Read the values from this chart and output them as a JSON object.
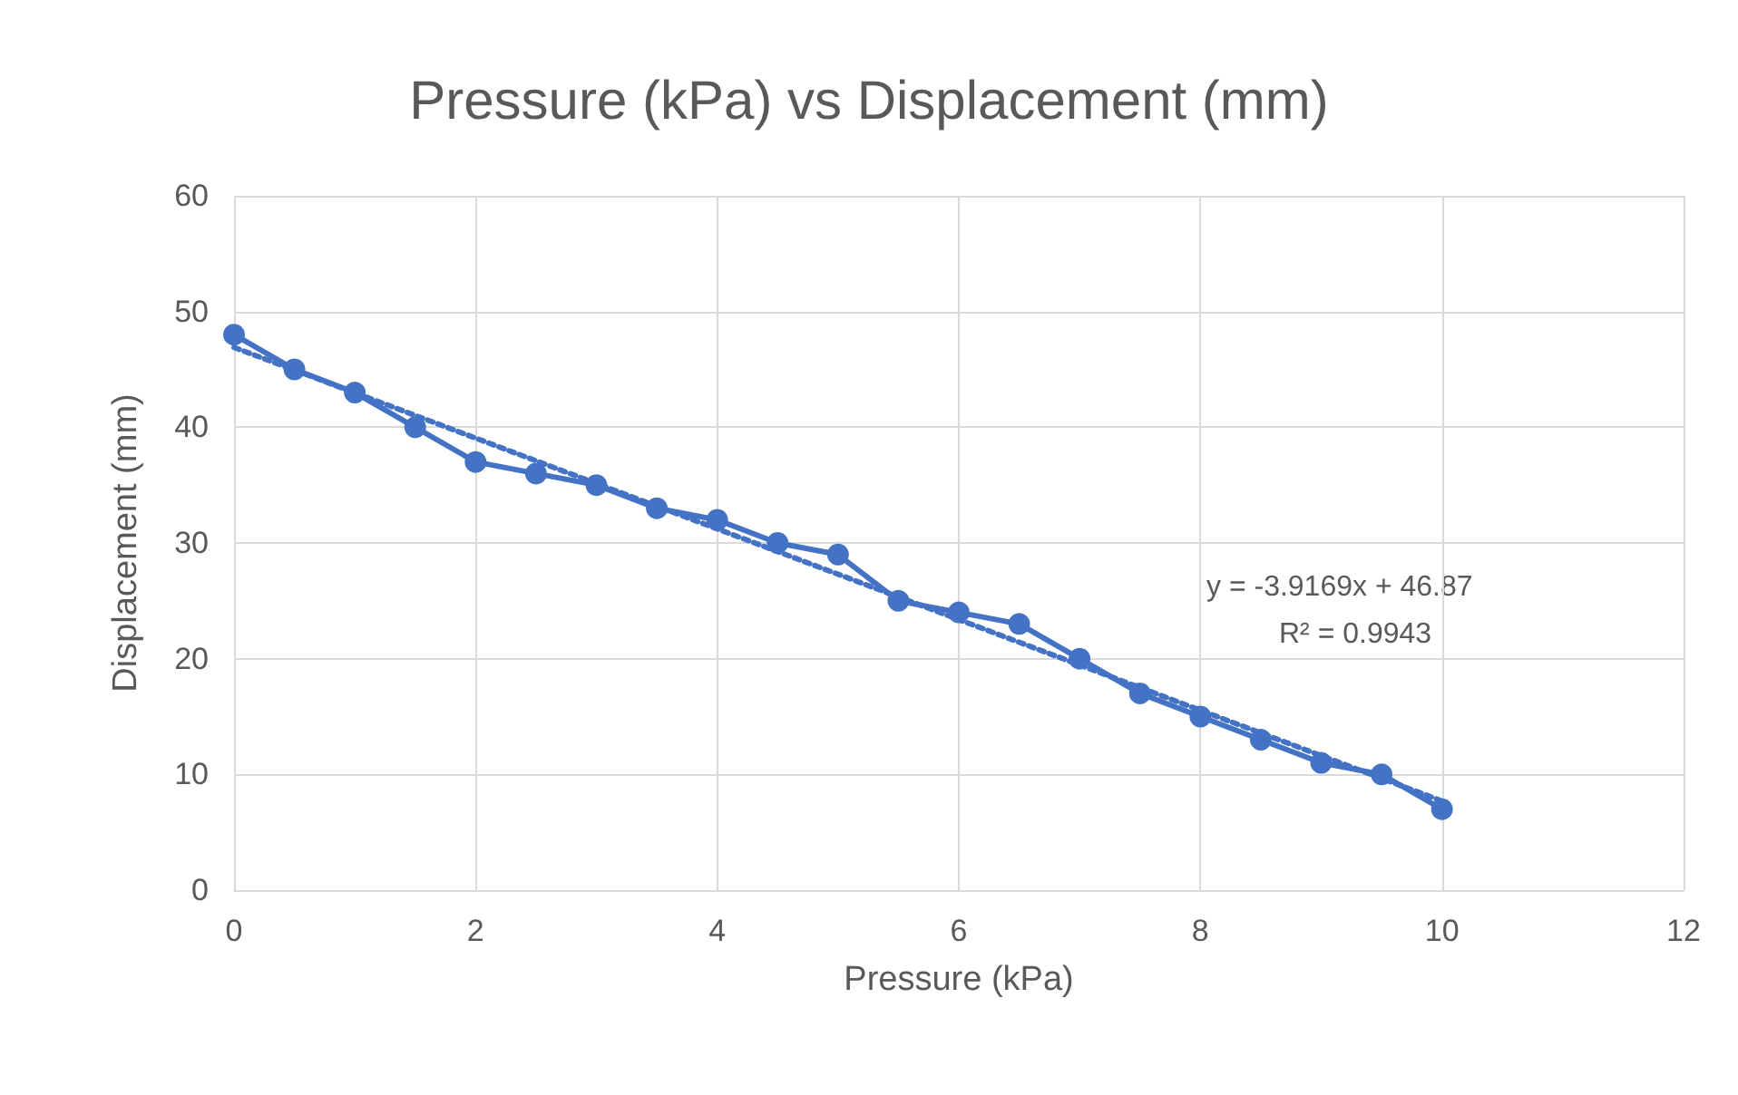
{
  "chart_data": {
    "type": "line",
    "title": "Pressure (kPa) vs Displacement (mm)",
    "xlabel": "Pressure (kPa)",
    "ylabel": "Displacement (mm)",
    "x": [
      0,
      0.5,
      1,
      1.5,
      2,
      2.5,
      3,
      3.5,
      4,
      4.5,
      5,
      5.5,
      6,
      6.5,
      7,
      7.5,
      8,
      8.5,
      9,
      9.5,
      10
    ],
    "series": [
      {
        "color": "#4472c4",
        "marker": "circle",
        "line_style": "solid",
        "values": [
          48,
          45,
          43,
          40,
          37,
          36,
          35,
          33,
          32,
          30,
          29,
          25,
          24,
          23,
          20,
          17,
          15,
          13,
          11,
          10,
          7
        ]
      },
      {
        "color": "#4472c4",
        "marker": "none",
        "line_style": "dotted",
        "x": [
          0,
          10
        ],
        "values": [
          46.9,
          7.7
        ]
      }
    ],
    "annotations": [
      "y = -3.9169x + 46.87",
      "R² = 0.9943"
    ],
    "xlim": [
      0,
      12
    ],
    "xticks": [
      0,
      2,
      4,
      6,
      8,
      10,
      12
    ],
    "ylim": [
      0,
      60
    ],
    "yticks": [
      0,
      10,
      20,
      30,
      40,
      50,
      60
    ],
    "grid": true
  }
}
